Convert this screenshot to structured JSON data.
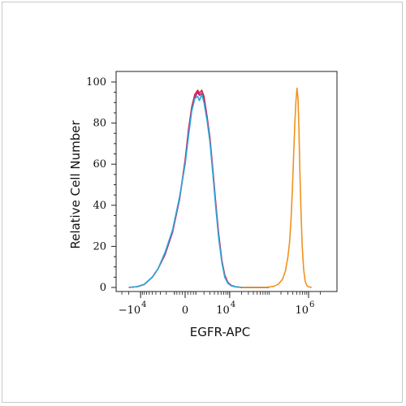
{
  "chart_data": {
    "type": "line",
    "title": "",
    "xlabel": "EGFR-APC",
    "ylabel": "Relative Cell Number",
    "x_scale": "biexponential",
    "x_ticks": [
      {
        "value": -10000,
        "label": "−10",
        "exp": "4"
      },
      {
        "value": 0,
        "label": "0",
        "exp": ""
      },
      {
        "value": 10000,
        "label": "10",
        "exp": "4"
      },
      {
        "value": 1000000,
        "label": "10",
        "exp": "6"
      }
    ],
    "ylim": [
      0,
      100
    ],
    "y_ticks": [
      0,
      20,
      40,
      60,
      80,
      100
    ],
    "grid": false,
    "legend": "none",
    "series": [
      {
        "color": "#d8203a",
        "points": [
          [
            -20000,
            0
          ],
          [
            -12000,
            0.4
          ],
          [
            -8000,
            1.5
          ],
          [
            -5000,
            5
          ],
          [
            -3500,
            9
          ],
          [
            -2200,
            16
          ],
          [
            -1200,
            27
          ],
          [
            -500,
            43
          ],
          [
            0,
            62
          ],
          [
            300,
            77
          ],
          [
            600,
            88
          ],
          [
            900,
            94
          ],
          [
            1200,
            96
          ],
          [
            1400,
            94.5
          ],
          [
            1700,
            96
          ],
          [
            2000,
            93
          ],
          [
            2500,
            83
          ],
          [
            3000,
            73
          ],
          [
            3600,
            58
          ],
          [
            4300,
            42
          ],
          [
            5200,
            26
          ],
          [
            6300,
            13
          ],
          [
            7500,
            6
          ],
          [
            9000,
            2.5
          ],
          [
            11000,
            1
          ],
          [
            14000,
            0.4
          ],
          [
            20000,
            0
          ],
          [
            100000,
            0
          ]
        ]
      },
      {
        "color": "#c0207a",
        "points": [
          [
            -20000,
            0
          ],
          [
            -12000,
            0.4
          ],
          [
            -8000,
            1.5
          ],
          [
            -5000,
            5
          ],
          [
            -3500,
            9
          ],
          [
            -2200,
            16
          ],
          [
            -1200,
            27
          ],
          [
            -500,
            43
          ],
          [
            0,
            61
          ],
          [
            300,
            76
          ],
          [
            600,
            87
          ],
          [
            900,
            92.5
          ],
          [
            1200,
            95
          ],
          [
            1400,
            93.5
          ],
          [
            1700,
            94.5
          ],
          [
            2000,
            91.5
          ],
          [
            2500,
            82
          ],
          [
            3000,
            72
          ],
          [
            3600,
            57
          ],
          [
            4300,
            41
          ],
          [
            5200,
            25
          ],
          [
            6300,
            12.5
          ],
          [
            7500,
            5.5
          ],
          [
            9000,
            2.3
          ],
          [
            11000,
            0.9
          ],
          [
            14000,
            0.3
          ],
          [
            20000,
            0
          ],
          [
            100000,
            0
          ]
        ]
      },
      {
        "color": "#2aa8d8",
        "points": [
          [
            -20000,
            0
          ],
          [
            -12000,
            0.4
          ],
          [
            -8000,
            1.6
          ],
          [
            -5000,
            5
          ],
          [
            -3500,
            9
          ],
          [
            -2200,
            17
          ],
          [
            -1200,
            28
          ],
          [
            -500,
            44
          ],
          [
            0,
            60
          ],
          [
            300,
            74
          ],
          [
            600,
            86
          ],
          [
            900,
            92
          ],
          [
            1200,
            93
          ],
          [
            1400,
            91
          ],
          [
            1700,
            94
          ],
          [
            2000,
            90
          ],
          [
            2500,
            81
          ],
          [
            3000,
            71
          ],
          [
            3600,
            56
          ],
          [
            4300,
            40
          ],
          [
            5200,
            24
          ],
          [
            6300,
            12
          ],
          [
            7500,
            5
          ],
          [
            9000,
            2
          ],
          [
            11000,
            0.8
          ],
          [
            14000,
            0.3
          ],
          [
            20000,
            0
          ],
          [
            100000,
            0
          ]
        ]
      },
      {
        "color": "#f0931e",
        "points": [
          [
            20000,
            0
          ],
          [
            80000,
            0
          ],
          [
            130000,
            0.5
          ],
          [
            170000,
            1.5
          ],
          [
            220000,
            4
          ],
          [
            260000,
            8
          ],
          [
            300000,
            15
          ],
          [
            330000,
            22
          ],
          [
            360000,
            33
          ],
          [
            390000,
            48
          ],
          [
            420000,
            65
          ],
          [
            450000,
            80
          ],
          [
            480000,
            91
          ],
          [
            510000,
            97
          ],
          [
            540000,
            92
          ],
          [
            570000,
            78
          ],
          [
            600000,
            58
          ],
          [
            640000,
            38
          ],
          [
            690000,
            20
          ],
          [
            750000,
            9
          ],
          [
            820000,
            3
          ],
          [
            900000,
            1
          ],
          [
            1000000,
            0.3
          ],
          [
            1200000,
            0
          ]
        ]
      }
    ]
  }
}
